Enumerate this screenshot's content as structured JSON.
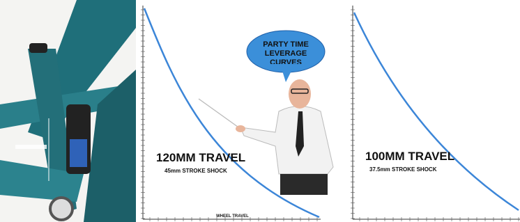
{
  "bubble": "PARTY TIME LEVERAGE CURVES",
  "panels": [
    {
      "title": "120MM TRAVEL",
      "subtitle": "45mm STROKE SHOCK",
      "x_label": "WHEEL TRAVEL"
    },
    {
      "title": "100MM TRAVEL",
      "subtitle": "37.5mm STROKE SHOCK"
    }
  ]
}
